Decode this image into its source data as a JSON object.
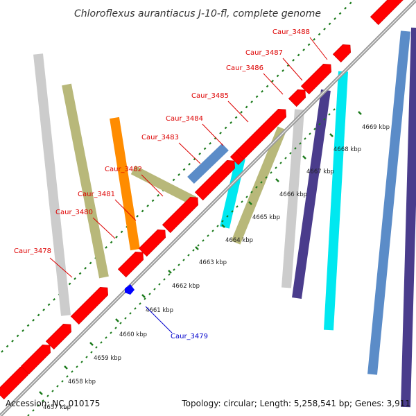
{
  "title": "Chloroflexus aurantiacus J-10-fl, complete genome",
  "footer": {
    "accession": "Accession: NC_010175",
    "stats": "Topology: circular; Length: 5,258,541 bp; Genes: 3,911"
  },
  "colors": {
    "forward_cds": "#ff0000",
    "reverse_cds": "#ff0000",
    "label_forward": "#dd0000",
    "label_reverse": "#0000cc",
    "tick": "#1a7a1a",
    "backbone": "#999999"
  },
  "ticks": [
    {
      "label": "4657 kbp"
    },
    {
      "label": "4658 kbp"
    },
    {
      "label": "4659 kbp"
    },
    {
      "label": "4660 kbp"
    },
    {
      "label": "4661 kbp"
    },
    {
      "label": "4662 kbp"
    },
    {
      "label": "4663 kbp"
    },
    {
      "label": "4664 kbp"
    },
    {
      "label": "4665 kbp"
    },
    {
      "label": "4666 kbp"
    },
    {
      "label": "4667 kbp"
    },
    {
      "label": "4668 kbp"
    },
    {
      "label": "4669 kbp"
    }
  ],
  "labels": [
    {
      "text": "Caur_3478",
      "strand": "forward"
    },
    {
      "text": "Caur_3479",
      "strand": "reverse"
    },
    {
      "text": "Caur_3480",
      "strand": "forward"
    },
    {
      "text": "Caur_3481",
      "strand": "forward"
    },
    {
      "text": "Caur_3482",
      "strand": "forward"
    },
    {
      "text": "Caur_3483",
      "strand": "forward"
    },
    {
      "text": "Caur_3484",
      "strand": "forward"
    },
    {
      "text": "Caur_3485",
      "strand": "forward"
    },
    {
      "text": "Caur_3486",
      "strand": "forward"
    },
    {
      "text": "Caur_3487",
      "strand": "forward"
    },
    {
      "text": "Caur_3488",
      "strand": "forward"
    }
  ]
}
